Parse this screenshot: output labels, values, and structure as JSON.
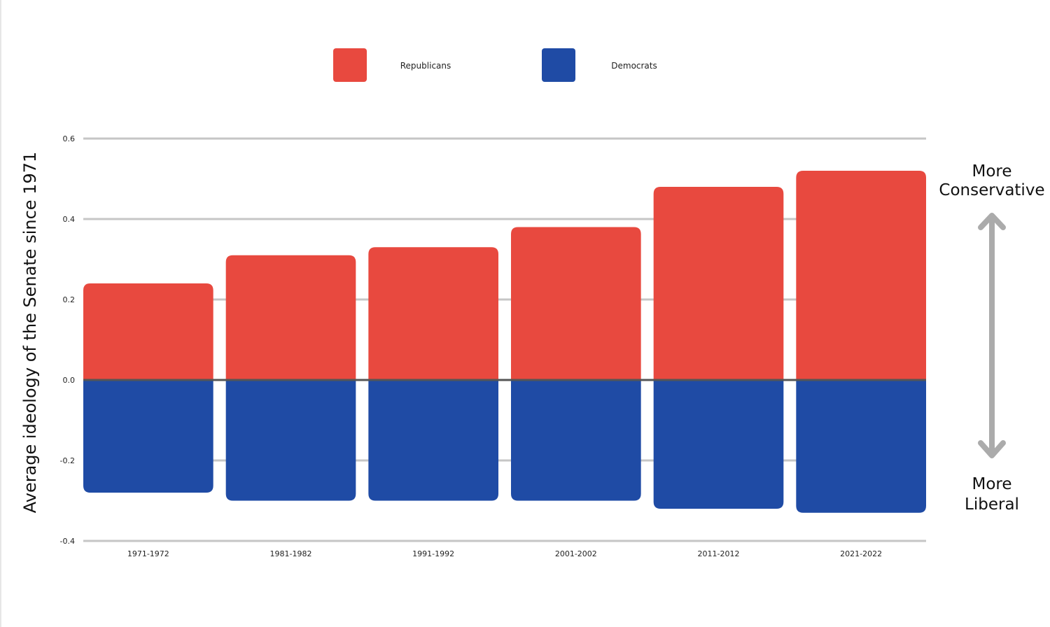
{
  "chart_data": {
    "type": "bar",
    "stacked": "diverging",
    "categories": [
      "1971-1972",
      "1981-1982",
      "1991-1992",
      "2001-2002",
      "2011-2012",
      "2021-2022"
    ],
    "series": [
      {
        "name": "Republicans",
        "color": "#e8493f",
        "values": [
          0.24,
          0.31,
          0.33,
          0.38,
          0.48,
          0.52
        ]
      },
      {
        "name": "Democrats",
        "color": "#1f4ba5",
        "values": [
          -0.28,
          -0.3,
          -0.3,
          -0.3,
          -0.32,
          -0.33
        ]
      }
    ],
    "ylabel": "Average  ideology of the Senate since 1971",
    "xlabel": "",
    "ylim": [
      -0.4,
      0.6
    ],
    "yticks": [
      "0.6",
      "0.4",
      "0.2",
      "0.0",
      "-0.2",
      "-0.4"
    ],
    "ytick_values": [
      0.6,
      0.4,
      0.2,
      0.0,
      -0.2,
      -0.4
    ],
    "grid": true,
    "legend_position": "top-center",
    "annotations": {
      "top_line1": "More",
      "top_line2": "Conservative",
      "bottom_line1": "More",
      "bottom_line2": "Liberal",
      "arrow_color": "#ababab"
    }
  }
}
